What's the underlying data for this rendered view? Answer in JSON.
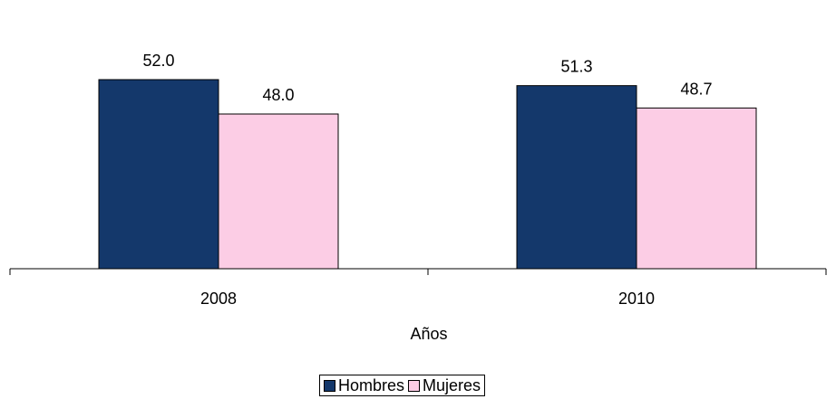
{
  "chart_data": {
    "type": "bar",
    "categories": [
      "2008",
      "2010"
    ],
    "series": [
      {
        "name": "Hombres",
        "values": [
          52.0,
          51.3
        ],
        "color": "#14386B",
        "value_labels": [
          "52.0",
          "51.3"
        ]
      },
      {
        "name": "Mujeres",
        "values": [
          48.0,
          48.7
        ],
        "color": "#FCCDE5",
        "value_labels": [
          "48.0",
          "48.7"
        ]
      }
    ],
    "title": "",
    "xlabel": "Años",
    "ylabel": "",
    "ylim": [
      30,
      55
    ],
    "grid": false,
    "legend_position": "bottom"
  }
}
